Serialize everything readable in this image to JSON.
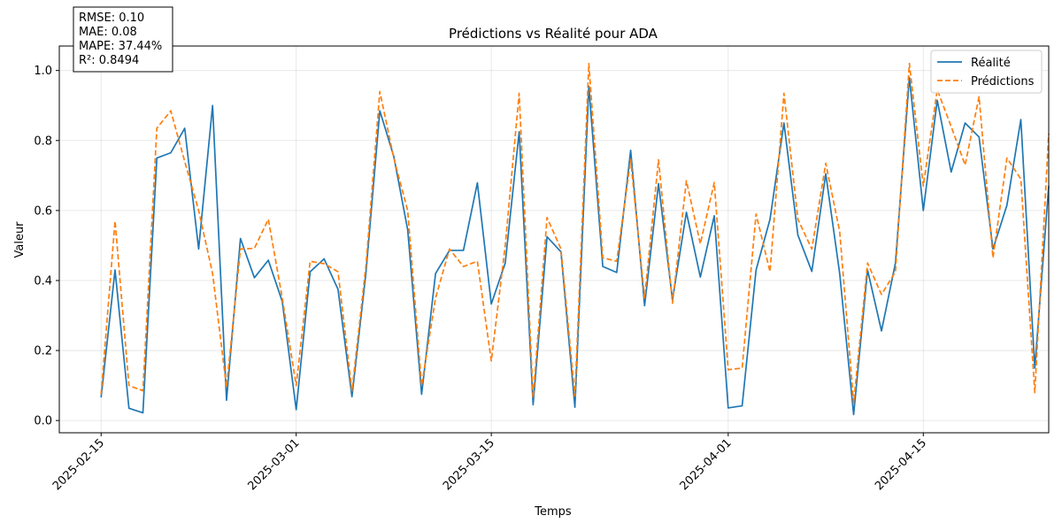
{
  "chart_data": {
    "type": "line",
    "title": "Prédictions vs Réalité pour ADA",
    "xlabel": "Temps",
    "ylabel": "Valeur",
    "x_start": "2025-02-15",
    "x_end": "2025-04-23",
    "xlim": [
      "2025-02-12",
      "2025-04-24"
    ],
    "ylim": [
      -0.035,
      1.07
    ],
    "x_ticks": [
      "2025-02-15",
      "2025-03-01",
      "2025-03-15",
      "2025-04-01",
      "2025-04-15"
    ],
    "y_ticks": [
      0.0,
      0.2,
      0.4,
      0.6,
      0.8,
      1.0
    ],
    "y_tick_labels": [
      "0.0",
      "0.2",
      "0.4",
      "0.6",
      "0.8",
      "1.0"
    ],
    "grid": true,
    "legend_position": "top-right",
    "series": [
      {
        "name": "Réalité",
        "color": "#1f77b4",
        "style": "solid",
        "values": [
          0.066,
          0.43,
          0.035,
          0.022,
          0.75,
          0.765,
          0.835,
          0.49,
          0.9,
          0.058,
          0.52,
          0.408,
          0.458,
          0.34,
          0.031,
          0.425,
          0.462,
          0.375,
          0.068,
          0.42,
          0.885,
          0.755,
          0.545,
          0.075,
          0.42,
          0.486,
          0.486,
          0.679,
          0.333,
          0.45,
          0.825,
          0.045,
          0.525,
          0.482,
          0.038,
          0.955,
          0.44,
          0.423,
          0.772,
          0.328,
          0.677,
          0.345,
          0.595,
          0.41,
          0.585,
          0.036,
          0.042,
          0.43,
          0.575,
          0.85,
          0.53,
          0.426,
          0.705,
          0.42,
          0.017,
          0.43,
          0.256,
          0.45,
          0.98,
          0.6,
          0.915,
          0.71,
          0.85,
          0.81,
          0.49,
          0.615,
          0.86,
          0.15,
          0.67
        ]
      },
      {
        "name": "Prédictions",
        "color": "#ff7f0e",
        "style": "dashed",
        "values": [
          0.075,
          0.57,
          0.1,
          0.085,
          0.835,
          0.885,
          0.74,
          0.6,
          0.42,
          0.095,
          0.49,
          0.492,
          0.575,
          0.35,
          0.1,
          0.455,
          0.448,
          0.425,
          0.085,
          0.44,
          0.94,
          0.75,
          0.6,
          0.1,
          0.35,
          0.49,
          0.44,
          0.455,
          0.17,
          0.5,
          0.935,
          0.065,
          0.58,
          0.49,
          0.07,
          1.02,
          0.465,
          0.455,
          0.745,
          0.35,
          0.745,
          0.335,
          0.685,
          0.505,
          0.68,
          0.145,
          0.15,
          0.59,
          0.425,
          0.935,
          0.575,
          0.49,
          0.735,
          0.54,
          0.05,
          0.45,
          0.36,
          0.425,
          1.02,
          0.67,
          0.945,
          0.84,
          0.73,
          0.925,
          0.465,
          0.75,
          0.69,
          0.08,
          0.82
        ]
      }
    ]
  },
  "metrics": {
    "rmse": "RMSE: 0.10",
    "mae": "MAE: 0.08",
    "mape": "MAPE: 37.44%",
    "r2": "R²: 0.8494"
  },
  "legend": {
    "items": [
      "Réalité",
      "Prédictions"
    ]
  }
}
